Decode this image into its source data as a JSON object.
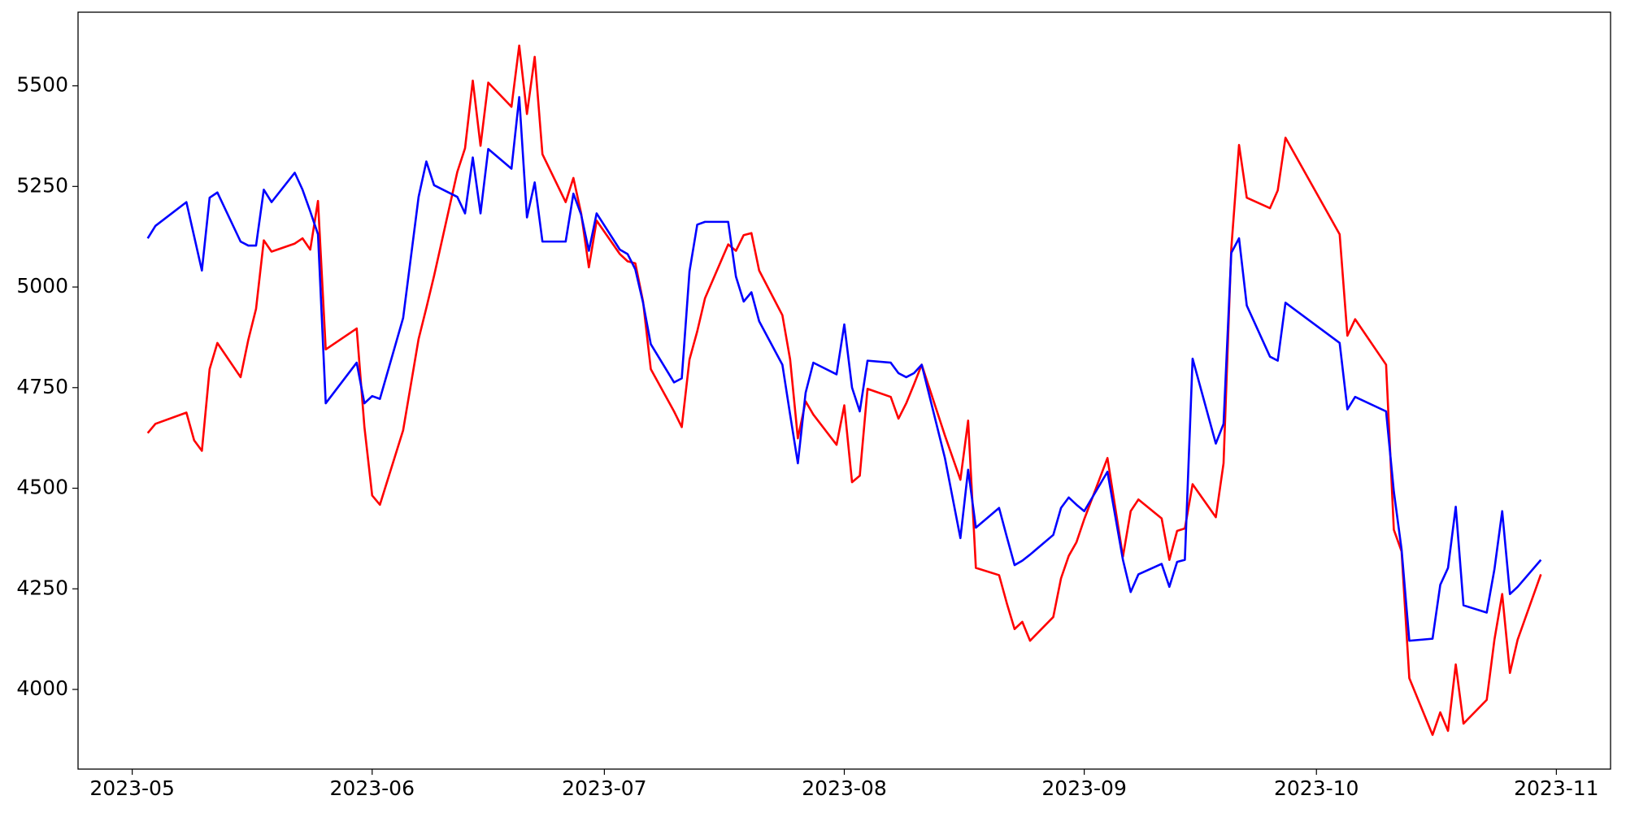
{
  "chart_data": {
    "type": "line",
    "x": [
      "2023-05-03",
      "2023-05-04",
      "2023-05-08",
      "2023-05-09",
      "2023-05-10",
      "2023-05-11",
      "2023-05-12",
      "2023-05-15",
      "2023-05-16",
      "2023-05-17",
      "2023-05-18",
      "2023-05-19",
      "2023-05-22",
      "2023-05-23",
      "2023-05-24",
      "2023-05-25",
      "2023-05-26",
      "2023-05-30",
      "2023-05-31",
      "2023-06-01",
      "2023-06-02",
      "2023-06-05",
      "2023-06-07",
      "2023-06-08",
      "2023-06-09",
      "2023-06-12",
      "2023-06-13",
      "2023-06-14",
      "2023-06-15",
      "2023-06-16",
      "2023-06-19",
      "2023-06-20",
      "2023-06-21",
      "2023-06-22",
      "2023-06-23",
      "2023-06-26",
      "2023-06-27",
      "2023-06-28",
      "2023-06-29",
      "2023-06-30",
      "2023-07-03",
      "2023-07-04",
      "2023-07-05",
      "2023-07-06",
      "2023-07-07",
      "2023-07-10",
      "2023-07-11",
      "2023-07-12",
      "2023-07-13",
      "2023-07-14",
      "2023-07-17",
      "2023-07-18",
      "2023-07-19",
      "2023-07-20",
      "2023-07-21",
      "2023-07-24",
      "2023-07-25",
      "2023-07-26",
      "2023-07-27",
      "2023-07-28",
      "2023-07-31",
      "2023-08-01",
      "2023-08-02",
      "2023-08-03",
      "2023-08-04",
      "2023-08-07",
      "2023-08-08",
      "2023-08-09",
      "2023-08-10",
      "2023-08-11",
      "2023-08-14",
      "2023-08-16",
      "2023-08-17",
      "2023-08-18",
      "2023-08-21",
      "2023-08-22",
      "2023-08-23",
      "2023-08-24",
      "2023-08-25",
      "2023-08-28",
      "2023-08-29",
      "2023-08-30",
      "2023-08-31",
      "2023-09-01",
      "2023-09-04",
      "2023-09-06",
      "2023-09-07",
      "2023-09-08",
      "2023-09-11",
      "2023-09-12",
      "2023-09-13",
      "2023-09-14",
      "2023-09-15",
      "2023-09-18",
      "2023-09-19",
      "2023-09-20",
      "2023-09-21",
      "2023-09-22",
      "2023-09-25",
      "2023-09-26",
      "2023-09-27",
      "2023-10-04",
      "2023-10-05",
      "2023-10-06",
      "2023-10-10",
      "2023-10-11",
      "2023-10-12",
      "2023-10-13",
      "2023-10-16",
      "2023-10-17",
      "2023-10-18",
      "2023-10-19",
      "2023-10-20",
      "2023-10-23",
      "2023-10-24",
      "2023-10-25",
      "2023-10-26",
      "2023-10-27",
      "2023-10-30"
    ],
    "series": [
      {
        "color": "#ff0000",
        "values": [
          4637,
          4660,
          4688,
          4619,
          4593,
          4796,
          4861,
          4776,
          4869,
          4946,
          5116,
          5088,
          5108,
          5121,
          5093,
          5214,
          4845,
          4897,
          4652,
          4482,
          4459,
          4644,
          4871,
          4948,
          5028,
          5286,
          5345,
          5513,
          5351,
          5508,
          5448,
          5600,
          5430,
          5572,
          5330,
          5211,
          5271,
          5183,
          5049,
          5165,
          5082,
          5064,
          5059,
          4964,
          4796,
          4691,
          4652,
          4820,
          4890,
          4972,
          5106,
          5090,
          5129,
          5134,
          5041,
          4930,
          4820,
          4624,
          4716,
          4683,
          4608,
          4706,
          4515,
          4531,
          4747,
          4727,
          4673,
          4711,
          4758,
          4807,
          4631,
          4521,
          4668,
          4302,
          4284,
          4214,
          4150,
          4168,
          4121,
          4180,
          4276,
          4332,
          4366,
          4423,
          4575,
          4330,
          4443,
          4472,
          4425,
          4322,
          4394,
          4400,
          4510,
          4428,
          4562,
          5096,
          5353,
          5222,
          5196,
          5240,
          5371,
          5131,
          4879,
          4920,
          4807,
          4397,
          4343,
          4028,
          3887,
          3943,
          3897,
          4062,
          3915,
          3974,
          4124,
          4237,
          4041,
          4124,
          4286
        ]
      },
      {
        "color": "#0000ff",
        "values": [
          5121,
          5152,
          5211,
          5126,
          5041,
          5222,
          5235,
          5113,
          5103,
          5103,
          5242,
          5211,
          5284,
          5242,
          5188,
          5131,
          4711,
          4812,
          4711,
          4729,
          4722,
          4923,
          5224,
          5312,
          5253,
          5224,
          5183,
          5322,
          5183,
          5343,
          5294,
          5472,
          5173,
          5260,
          5113,
          5113,
          5232,
          5180,
          5090,
          5183,
          5093,
          5082,
          5044,
          4961,
          4858,
          4763,
          4773,
          5039,
          5155,
          5162,
          5162,
          5026,
          4964,
          4987,
          4915,
          4807,
          4683,
          4562,
          4737,
          4812,
          4783,
          4907,
          4750,
          4691,
          4817,
          4812,
          4786,
          4776,
          4786,
          4807,
          4575,
          4376,
          4546,
          4402,
          4451,
          4379,
          4309,
          4320,
          4335,
          4384,
          4451,
          4477,
          4459,
          4443,
          4541,
          4322,
          4242,
          4286,
          4312,
          4255,
          4317,
          4322,
          4822,
          4611,
          4660,
          5085,
          5121,
          4954,
          4827,
          4817,
          4961,
          4861,
          4696,
          4727,
          4691,
          4492,
          4348,
          4121,
          4126,
          4260,
          4302,
          4454,
          4209,
          4191,
          4299,
          4443,
          4237,
          4255,
          4322
        ]
      }
    ],
    "xlim": [
      "2023-04-24",
      "2023-11-08"
    ],
    "xticks": [
      "2023-05",
      "2023-06",
      "2023-07",
      "2023-08",
      "2023-09",
      "2023-10",
      "2023-11"
    ],
    "ylim": [
      3802,
      5683
    ],
    "yticks": [
      4000,
      4250,
      4500,
      4750,
      5000,
      5250,
      5500
    ],
    "grid": false
  }
}
